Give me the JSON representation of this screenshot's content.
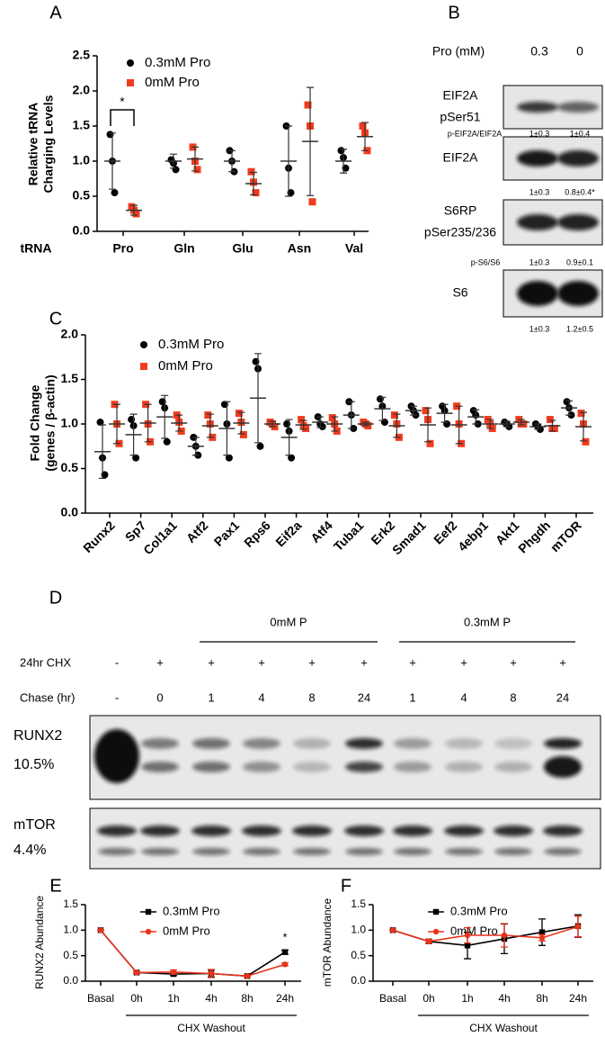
{
  "panel_labels": [
    "A",
    "B",
    "C",
    "D",
    "E",
    "F"
  ],
  "chart_data": [
    {
      "type": "dot",
      "ylabel": [
        "Relative tRNA",
        "Charging Levels"
      ],
      "xlabel": "tRNA",
      "categories": [
        "Pro",
        "Gln",
        "Glu",
        "Asn",
        "Val"
      ],
      "ylim": [
        0,
        2.5
      ],
      "yticks": [
        {
          "value": 0,
          "label": "0.0"
        },
        0.5,
        {
          "value": 1,
          "label": "1.0"
        },
        1.5,
        {
          "value": 2,
          "label": "2.0"
        },
        2.5
      ],
      "annotation": "*",
      "series": [
        {
          "name": "0.3mM Pro",
          "color": "#000000",
          "marker": "circle",
          "values": [
            [
              1.38,
              1.0,
              0.55
            ],
            [
              1.02,
              0.97,
              0.88
            ],
            [
              1.15,
              1.0,
              0.85
            ],
            [
              1.5,
              0.9,
              0.55
            ],
            [
              1.15,
              1.05,
              0.9
            ]
          ],
          "mean": [
            1.0,
            1.0,
            1.0,
            1.0,
            1.0
          ],
          "sd": [
            0.4,
            0.1,
            0.15,
            0.5,
            0.17
          ]
        },
        {
          "name": "0mM Pro",
          "color": "#f03c1e",
          "marker": "square",
          "values": [
            [
              0.35,
              0.3,
              0.25
            ],
            [
              1.2,
              1.0,
              0.88
            ],
            [
              0.85,
              0.7,
              0.55
            ],
            [
              1.8,
              1.5,
              0.42
            ],
            [
              1.5,
              1.4,
              1.15
            ]
          ],
          "mean": [
            0.3,
            1.03,
            0.68,
            1.28,
            1.35
          ],
          "sd": [
            0.07,
            0.17,
            0.16,
            0.77,
            0.2
          ]
        }
      ]
    },
    {
      "type": "dot",
      "ylabel": [
        "Fold Change",
        "(genes / β-actin)"
      ],
      "categories": [
        "Runx2",
        "Sp7",
        "Col1a1",
        "Atf2",
        "Pax1",
        "Rps6",
        "Eif2a",
        "Atf4",
        "Tuba1",
        "Erk2",
        "Smad1",
        "Eef2",
        "4ebp1",
        "Akt1",
        "Phgdh",
        "mTOR"
      ],
      "ylim": [
        0,
        2
      ],
      "yticks": [
        {
          "value": 0,
          "label": "0.0"
        },
        0.5,
        {
          "value": 1,
          "label": "1.0"
        },
        1.5,
        {
          "value": 2,
          "label": "2.0"
        }
      ],
      "series": [
        {
          "name": "0.3mM Pro",
          "color": "#000000",
          "marker": "circle",
          "values": [
            [
              1.02,
              0.62,
              0.43
            ],
            [
              1.05,
              0.98,
              0.62
            ],
            [
              1.25,
              1.18,
              0.8
            ],
            [
              0.85,
              0.75,
              0.65
            ],
            [
              1.22,
              1.0,
              0.62
            ],
            [
              1.7,
              1.62,
              0.75
            ],
            [
              1.0,
              0.92,
              0.62
            ],
            [
              1.08,
              1.0,
              0.97
            ],
            [
              1.25,
              1.1,
              0.95
            ],
            [
              1.28,
              1.2,
              1.02
            ],
            [
              1.2,
              1.15,
              1.1
            ],
            [
              1.2,
              1.15,
              1.0
            ],
            [
              1.15,
              1.1,
              1.0
            ],
            [
              1.02,
              1.0,
              0.97
            ],
            [
              1.0,
              0.97,
              0.94
            ],
            [
              1.25,
              1.18,
              1.1
            ]
          ],
          "mean": [
            0.69,
            0.88,
            1.08,
            0.75,
            0.95,
            1.29,
            0.85,
            1.02,
            1.1,
            1.17,
            1.15,
            1.12,
            1.08,
            1.0,
            0.97,
            1.18
          ],
          "sd": [
            0.3,
            0.23,
            0.24,
            0.1,
            0.3,
            0.5,
            0.2,
            0.06,
            0.15,
            0.13,
            0.05,
            0.1,
            0.08,
            0.03,
            0.03,
            0.08
          ]
        },
        {
          "name": "0mM Pro",
          "color": "#f03c1e",
          "marker": "square",
          "values": [
            [
              1.22,
              1.0,
              0.78
            ],
            [
              1.22,
              1.0,
              0.8
            ],
            [
              1.1,
              1.02,
              0.92
            ],
            [
              1.1,
              1.0,
              0.85
            ],
            [
              1.12,
              1.02,
              0.88
            ],
            [
              1.02,
              1.0,
              0.97
            ],
            [
              1.05,
              0.98,
              0.95
            ],
            [
              1.07,
              1.0,
              0.92
            ],
            [
              1.02,
              1.0,
              0.98
            ],
            [
              1.1,
              1.0,
              0.85
            ],
            [
              1.15,
              1.05,
              0.78
            ],
            [
              1.2,
              1.0,
              0.78
            ],
            [
              1.05,
              1.0,
              0.95
            ],
            [
              1.05,
              1.0,
              1.0
            ],
            [
              1.05,
              0.95,
              0.95
            ],
            [
              1.12,
              1.0,
              0.8
            ]
          ],
          "mean": [
            1.0,
            1.01,
            1.01,
            0.98,
            1.01,
            1.0,
            0.99,
            1.0,
            1.0,
            0.98,
            0.99,
            0.99,
            1.0,
            1.02,
            0.98,
            0.97
          ],
          "sd": [
            0.22,
            0.21,
            0.09,
            0.13,
            0.12,
            0.03,
            0.05,
            0.08,
            0.02,
            0.13,
            0.19,
            0.21,
            0.05,
            0.03,
            0.06,
            0.16
          ]
        }
      ]
    },
    {
      "type": "line",
      "ylabel": [
        "RUNX2 Abundance"
      ],
      "xgroup_label": "CHX Washout",
      "categories": [
        "Basal",
        "0h",
        "1h",
        "4h",
        "8h",
        "24h"
      ],
      "ylim": [
        0,
        1.5
      ],
      "yticks": [
        {
          "value": 0,
          "label": "0.0"
        },
        0.5,
        {
          "value": 1,
          "label": "1.0"
        },
        1.5
      ],
      "annotation": "*",
      "series": [
        {
          "name": "0.3mM Pro",
          "color": "#000000",
          "marker": "square",
          "values": [
            1.0,
            0.17,
            0.14,
            0.15,
            0.1,
            0.57
          ],
          "errors": [
            0,
            0.02,
            0.03,
            0.07,
            0.01,
            0.04
          ]
        },
        {
          "name": "0mM Pro",
          "color": "#e8341c",
          "marker": "circle",
          "values": [
            1.0,
            0.17,
            0.18,
            0.15,
            0.1,
            0.33
          ],
          "errors": [
            0,
            0.02,
            0.04,
            0.08,
            0.01,
            0.03
          ]
        }
      ]
    },
    {
      "type": "line",
      "ylabel": [
        "mTOR Abundance"
      ],
      "xgroup_label": "CHX Washout",
      "categories": [
        "Basal",
        "0h",
        "1h",
        "4h",
        "8h",
        "24h"
      ],
      "ylim": [
        0,
        1.5
      ],
      "yticks": [
        {
          "value": 0,
          "label": "0.0"
        },
        0.5,
        {
          "value": 1,
          "label": "1.0"
        },
        1.5
      ],
      "series": [
        {
          "name": "0.3mM Pro",
          "color": "#000000",
          "marker": "square",
          "values": [
            1.0,
            0.78,
            0.7,
            0.83,
            0.96,
            1.08
          ],
          "errors": [
            0,
            0.04,
            0.26,
            0.29,
            0.26,
            0.22
          ]
        },
        {
          "name": "0mM Pro",
          "color": "#e8341c",
          "marker": "circle",
          "values": [
            1.0,
            0.78,
            0.9,
            0.9,
            0.85,
            1.07
          ],
          "errors": [
            0,
            0.04,
            0.15,
            0.23,
            0.06,
            0.2
          ]
        }
      ]
    }
  ],
  "blot_b": {
    "header": "Pro (mM)",
    "columns": [
      "0.3",
      "0"
    ],
    "rows": [
      {
        "label": [
          "EIF2A",
          "pSer51"
        ],
        "ratio": "p-EIF2A/EIF2A",
        "quant": [
          "1±0.3",
          "1±0.4"
        ]
      },
      {
        "label": [
          "EIF2A"
        ],
        "quant": [
          "1±0.3",
          "0.8±0.4*"
        ]
      },
      {
        "label": [
          "S6RP",
          "pSer235/236"
        ],
        "ratio": "p-S6/S6",
        "quant": [
          "1±0.3",
          "0.9±0.1"
        ]
      },
      {
        "label": [
          "S6"
        ],
        "quant": [
          "1±0.3",
          "1.2±0.5"
        ]
      }
    ]
  },
  "blot_d": {
    "groups": [
      "0mM P",
      "0.3mM P"
    ],
    "rows": [
      {
        "label": "24hr CHX",
        "cells": [
          "-",
          "+",
          "+",
          "+",
          "+",
          "+",
          "+",
          "+",
          "+",
          "+"
        ]
      },
      {
        "label": "Chase (hr)",
        "cells": [
          "-",
          "0",
          "1",
          "4",
          "8",
          "24",
          "1",
          "4",
          "8",
          "24"
        ]
      }
    ],
    "blots": [
      {
        "label": "RUNX2",
        "percent": "10.5%"
      },
      {
        "label": "mTOR",
        "percent": "4.4%"
      }
    ]
  }
}
